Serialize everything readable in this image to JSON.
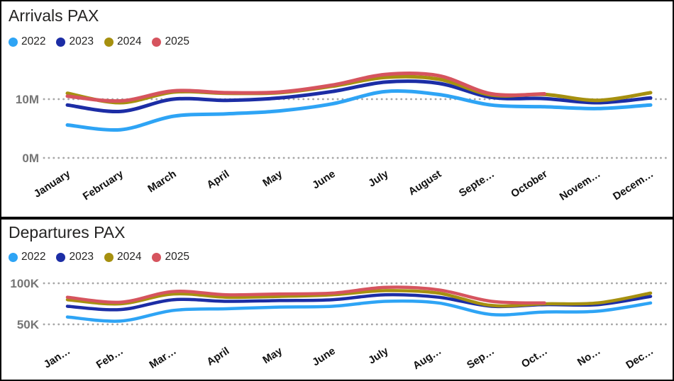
{
  "chart_data": [
    {
      "type": "line",
      "title": "Arrivals PAX",
      "unit": "M",
      "categories": [
        "January",
        "February",
        "March",
        "April",
        "May",
        "June",
        "July",
        "August",
        "Septe…",
        "October",
        "Novem…",
        "Decem…"
      ],
      "yticks": [
        {
          "label": "10M",
          "value": 10
        },
        {
          "label": "0M",
          "value": 0
        }
      ],
      "ylim": [
        0,
        15.5
      ],
      "grid": "dotted-horizontal",
      "legend_position": "top-left",
      "line_style": "smooth",
      "series": [
        {
          "name": "2022",
          "color": "#2EA4F5",
          "values": [
            5.6,
            4.8,
            7.1,
            7.5,
            8.0,
            9.2,
            11.3,
            10.8,
            9.0,
            8.7,
            8.4,
            9.0
          ]
        },
        {
          "name": "2023",
          "color": "#1C2DA5",
          "values": [
            9.0,
            7.9,
            10.0,
            9.8,
            10.2,
            11.3,
            12.9,
            12.7,
            10.3,
            10.1,
            9.4,
            10.2
          ]
        },
        {
          "name": "2024",
          "color": "#A6900F",
          "values": [
            11.0,
            9.4,
            11.2,
            11.0,
            11.1,
            12.2,
            13.7,
            13.4,
            10.7,
            10.8,
            9.8,
            11.1
          ]
        },
        {
          "name": "2025",
          "color": "#D6545E",
          "values": [
            10.5,
            9.7,
            11.4,
            11.1,
            11.2,
            12.4,
            14.2,
            14.0,
            10.9,
            10.9,
            null,
            null
          ]
        }
      ]
    },
    {
      "type": "line",
      "title": "Departures PAX",
      "unit": "K",
      "categories": [
        "Jan…",
        "Feb…",
        "Mar…",
        "April",
        "May",
        "June",
        "July",
        "Aug…",
        "Sep…",
        "Oct…",
        "No…",
        "Dec…"
      ],
      "yticks": [
        {
          "label": "100K",
          "value": 100
        },
        {
          "label": "50K",
          "value": 50
        }
      ],
      "ylim": [
        45,
        100
      ],
      "grid": "dotted-horizontal",
      "legend_position": "top-left",
      "line_style": "smooth",
      "series": [
        {
          "name": "2022",
          "color": "#2EA4F5",
          "values": [
            59,
            54,
            67,
            69,
            71,
            72,
            78,
            76,
            62,
            65,
            66,
            76
          ]
        },
        {
          "name": "2023",
          "color": "#1C2DA5",
          "values": [
            72,
            68,
            80,
            78,
            79,
            80,
            86,
            83,
            72,
            74,
            74,
            84
          ]
        },
        {
          "name": "2024",
          "color": "#A6900F",
          "values": [
            80,
            75,
            87,
            83,
            84,
            86,
            91,
            88,
            73,
            75,
            76,
            88
          ]
        },
        {
          "name": "2025",
          "color": "#D6545E",
          "values": [
            83,
            77,
            90,
            86,
            87,
            88,
            95,
            92,
            78,
            76,
            null,
            null
          ]
        }
      ]
    }
  ],
  "grid_color": "#A6A6A6",
  "axis_label_color": "#757575",
  "xtick_color": "#111111"
}
